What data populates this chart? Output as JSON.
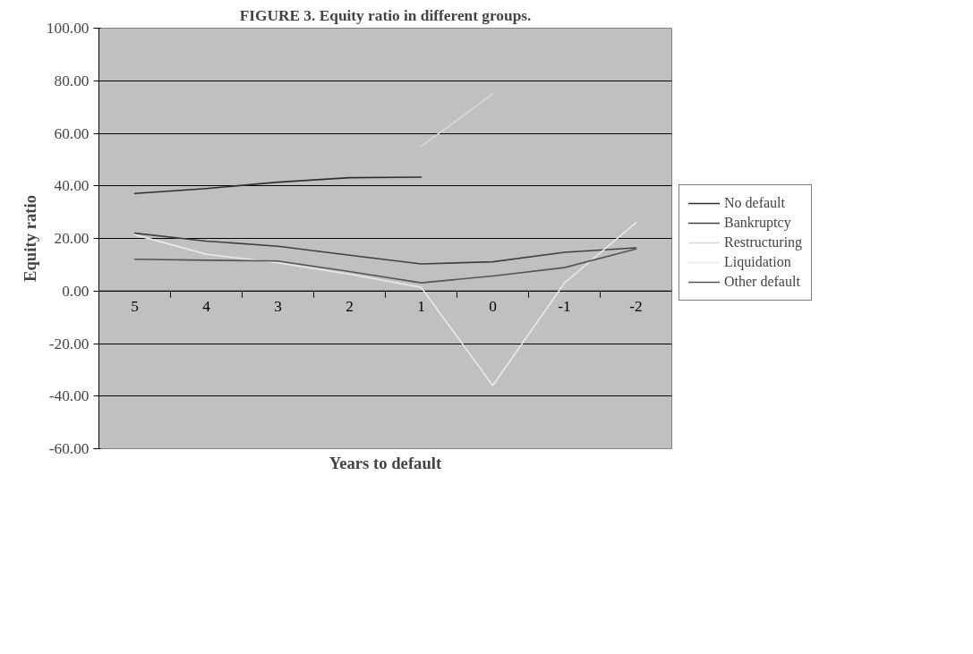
{
  "chart_data": {
    "type": "line",
    "title": "FIGURE 3. Equity ratio in different groups.",
    "xlabel": "Years to default",
    "ylabel": "Equity ratio",
    "categories": [
      "5",
      "4",
      "3",
      "2",
      "1",
      "0",
      "-1",
      "-2"
    ],
    "ylim": [
      -60,
      100
    ],
    "yticks": [
      {
        "value": -60,
        "label": "-60.00"
      },
      {
        "value": -40,
        "label": "-40.00"
      },
      {
        "value": -20,
        "label": "-20.00"
      },
      {
        "value": 0,
        "label": "0.00"
      },
      {
        "value": 20,
        "label": "20.00"
      },
      {
        "value": 40,
        "label": "40.00"
      },
      {
        "value": 60,
        "label": "60.00"
      },
      {
        "value": 80,
        "label": "80.00"
      },
      {
        "value": 100,
        "label": "100.00"
      }
    ],
    "grid": "y",
    "legend": "right",
    "marker": "none",
    "line_style": "solid",
    "series": [
      {
        "name": "No default",
        "color": "#303030",
        "values": [
          37.1,
          39,
          41.4,
          43.1,
          43.3,
          null,
          null,
          null
        ]
      },
      {
        "name": "Bankruptcy",
        "color": "#404040",
        "values": [
          22,
          19,
          17,
          13.6,
          10.3,
          11.1,
          14.7,
          16.4
        ]
      },
      {
        "name": "Restructuring",
        "color": "#d8d8d8",
        "values": [
          null,
          null,
          null,
          null,
          55,
          75,
          null,
          null
        ]
      },
      {
        "name": "Liquidation",
        "color": "#e8e8e8",
        "values": [
          21.4,
          14,
          10.7,
          6.4,
          1.4,
          -36,
          3,
          26
        ]
      },
      {
        "name": "Other default",
        "color": "#555555",
        "values": [
          12.1,
          11.7,
          11.4,
          7.4,
          3.1,
          5.7,
          8.9,
          16
        ]
      }
    ]
  }
}
